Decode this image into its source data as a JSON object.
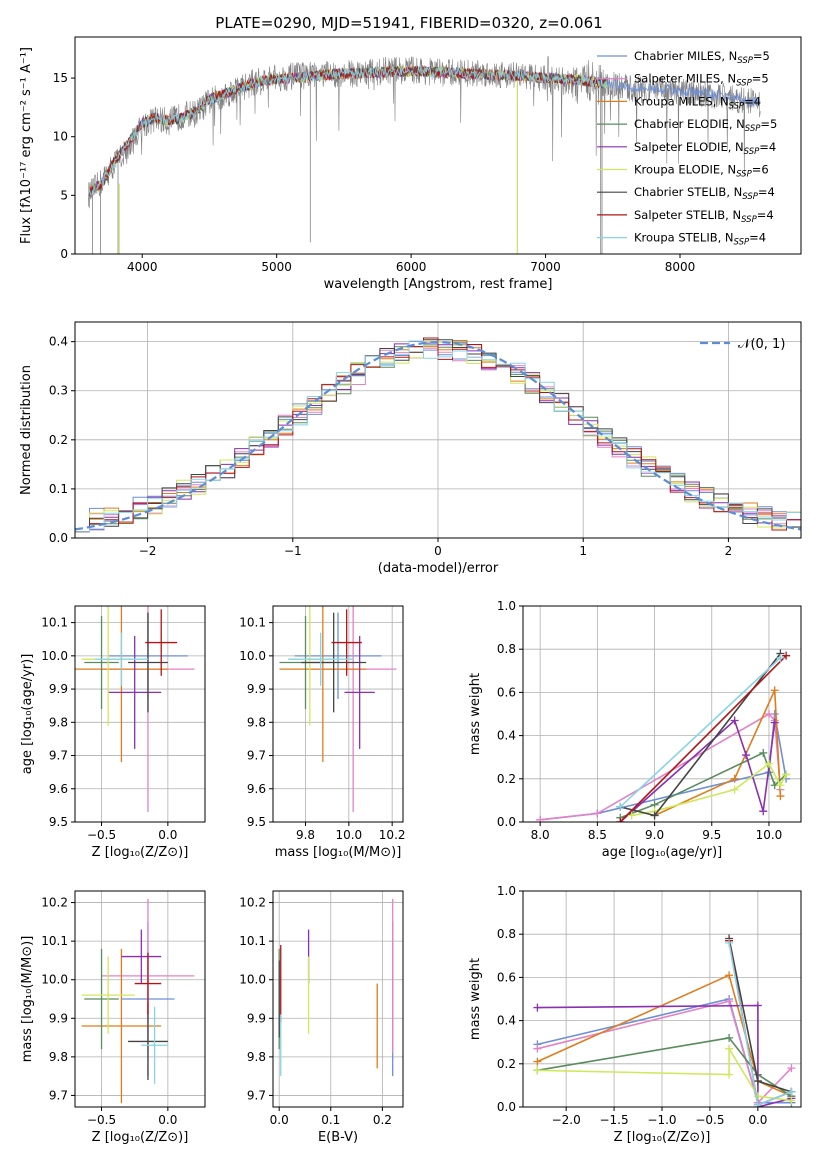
{
  "title": "PLATE=0290, MJD=51941, FIBERID=0320, z=0.061",
  "colors": {
    "data_spectrum": "#808080",
    "gaussian": "#5b8dd9"
  },
  "panels": {
    "spectrum": {
      "xlabel": "wavelength [Angstrom, rest frame]",
      "ylabel": "Flux [fλ10⁻¹⁷ erg cm⁻² s⁻¹ A⁻¹]"
    },
    "residuals": {
      "xlabel": "(data-model)/error",
      "ylabel": "Normed distribution",
      "legend": "𝒩(0, 1)"
    },
    "z_age": {
      "xlabel": "Z [log₁₀(Z/Z⊙)]",
      "ylabel": "age  [log₁₀(age/yr)]"
    },
    "mass_age": {
      "xlabel": "mass [log₁₀(M/M⊙)]"
    },
    "age_weight": {
      "xlabel": "age  [log₁₀(age/yr)]",
      "ylabel": "mass weight"
    },
    "z_mass": {
      "xlabel": "Z [log₁₀(Z/Z⊙)]",
      "ylabel": "mass [log₁₀(M/M⊙)]"
    },
    "ebv_mass": {
      "xlabel": "E(B-V)"
    },
    "z_weight": {
      "xlabel": "Z [log₁₀(Z/Z⊙)]",
      "ylabel": "mass weight"
    }
  },
  "models": [
    {
      "label": "Chabrier MILES, N",
      "sub": "SSP",
      "suffix": "=5",
      "color": "#6d8fd8"
    },
    {
      "label": "Salpeter MILES, N",
      "sub": "SSP",
      "suffix": "=5",
      "color": "#e382c8"
    },
    {
      "label": "Kroupa MILES, N",
      "sub": "SSP",
      "suffix": "=4",
      "color": "#e07c1c"
    },
    {
      "label": "Chabrier ELODIE, N",
      "sub": "SSP",
      "suffix": "=5",
      "color": "#5a8c5e"
    },
    {
      "label": "Salpeter ELODIE, N",
      "sub": "SSP",
      "suffix": "=4",
      "color": "#8b2fb0"
    },
    {
      "label": "Kroupa ELODIE, N",
      "sub": "SSP",
      "suffix": "=6",
      "color": "#cfe85c"
    },
    {
      "label": "Chabrier STELIB, N",
      "sub": "SSP",
      "suffix": "=4",
      "color": "#444444"
    },
    {
      "label": "Salpeter STELIB, N",
      "sub": "SSP",
      "suffix": "=4",
      "color": "#b31414"
    },
    {
      "label": "Kroupa STELIB, N",
      "sub": "SSP",
      "suffix": "=4",
      "color": "#87d4e6"
    }
  ],
  "chart_data": [
    {
      "id": "spectrum",
      "type": "line",
      "title": "PLATE=0290, MJD=51941, FIBERID=0320, z=0.061",
      "xlabel": "wavelength [Angstrom, rest frame]",
      "ylabel": "Flux [fλ10⁻¹⁷ erg cm⁻² s⁻¹ A⁻¹]",
      "xlim": [
        3500,
        8900
      ],
      "ylim": [
        0,
        18.5
      ],
      "xticks": [
        4000,
        5000,
        6000,
        7000,
        8000
      ],
      "yticks": [
        0,
        5,
        10,
        15
      ],
      "x": [
        3600,
        3700,
        3800,
        3900,
        4000,
        4100,
        4200,
        4300,
        4400,
        4500,
        4600,
        4700,
        4800,
        4900,
        5000,
        5200,
        5400,
        5600,
        5800,
        6000,
        6200,
        6400,
        6600,
        6800,
        7000,
        7200,
        7400,
        7600,
        7800,
        8000,
        8200,
        8400,
        8600
      ],
      "series": [
        {
          "name": "data",
          "values": [
            5.0,
            6.2,
            7.8,
            9.0,
            11.0,
            11.5,
            11.3,
            11.8,
            12.0,
            13.0,
            13.5,
            14.0,
            14.5,
            14.8,
            15.0,
            15.2,
            15.3,
            15.4,
            15.6,
            15.7,
            15.5,
            15.4,
            15.4,
            15.2,
            15.0,
            14.8,
            14.5,
            14.2,
            14.0,
            13.8,
            13.6,
            13.3,
            12.8
          ]
        },
        {
          "name": "model",
          "values": [
            5.2,
            6.0,
            8.0,
            9.5,
            11.2,
            11.6,
            11.4,
            11.6,
            12.2,
            13.2,
            13.6,
            14.1,
            14.4,
            14.8,
            14.9,
            15.1,
            15.3,
            15.4,
            15.5,
            15.6,
            15.5,
            15.4,
            15.3,
            15.2,
            15.0,
            14.9,
            14.6,
            14.3,
            14.1,
            13.9,
            13.7,
            13.3,
            12.9
          ]
        }
      ],
      "legend": "upper right"
    },
    {
      "id": "residuals",
      "type": "histogram",
      "xlabel": "(data-model)/error",
      "ylabel": "Normed distribution",
      "xlim": [
        -2.5,
        2.5
      ],
      "ylim": [
        0,
        0.44
      ],
      "xticks": [
        -2,
        -1,
        0,
        1,
        2
      ],
      "yticks": [
        0.0,
        0.1,
        0.2,
        0.3,
        0.4
      ],
      "bin_width": 0.1,
      "gaussian": {
        "mean": 0,
        "sigma": 1,
        "label": "𝒩(0, 1)"
      },
      "legend": "upper right"
    },
    {
      "id": "z_age",
      "type": "scatter",
      "xlabel": "Z [log₁₀(Z/Z⊙)]",
      "ylabel": "age  [log₁₀(age/yr)]",
      "xlim": [
        -0.7,
        0.28
      ],
      "ylim": [
        9.5,
        10.15
      ],
      "xticks": [
        -0.5,
        0.0
      ],
      "yticks": [
        9.5,
        9.6,
        9.7,
        9.8,
        9.9,
        10.0,
        10.1
      ],
      "points": [
        {
          "x": -0.15,
          "y": 10.0,
          "xerr": 0.3,
          "yerr": 0.13
        },
        {
          "x": -0.15,
          "y": 9.96,
          "xerr": 0.35,
          "yerr": 0.43
        },
        {
          "x": -0.35,
          "y": 9.96,
          "xerr": 0.35,
          "yerr": 0.28
        },
        {
          "x": -0.5,
          "y": 9.98,
          "xerr": 0.13,
          "yerr": 0.14
        },
        {
          "x": -0.25,
          "y": 9.89,
          "xerr": 0.2,
          "yerr": 0.17
        },
        {
          "x": -0.45,
          "y": 9.99,
          "xerr": 0.2,
          "yerr": 0.2
        },
        {
          "x": -0.15,
          "y": 9.98,
          "xerr": 0.15,
          "yerr": 0.15
        },
        {
          "x": -0.05,
          "y": 10.04,
          "xerr": 0.12,
          "yerr": 0.1
        },
        {
          "x": -0.35,
          "y": 9.99,
          "xerr": 0.2,
          "yerr": 0.08
        }
      ]
    },
    {
      "id": "mass_age",
      "type": "scatter",
      "xlabel": "mass [log₁₀(M/M⊙)]",
      "xlim": [
        9.65,
        10.25
      ],
      "ylim": [
        9.5,
        10.15
      ],
      "xticks": [
        9.8,
        10.0,
        10.2
      ],
      "yticks": [
        9.5,
        9.6,
        9.7,
        9.8,
        9.9,
        10.0,
        10.1
      ],
      "points": [
        {
          "x": 9.95,
          "y": 10.0,
          "xerr": 0.2,
          "yerr": 0.13
        },
        {
          "x": 10.02,
          "y": 9.96,
          "xerr": 0.2,
          "yerr": 0.43
        },
        {
          "x": 9.88,
          "y": 9.96,
          "xerr": 0.2,
          "yerr": 0.28
        },
        {
          "x": 9.8,
          "y": 9.98,
          "xerr": 0.12,
          "yerr": 0.14
        },
        {
          "x": 10.05,
          "y": 9.89,
          "xerr": 0.07,
          "yerr": 0.17
        },
        {
          "x": 9.82,
          "y": 9.99,
          "xerr": 0.1,
          "yerr": 0.2
        },
        {
          "x": 9.93,
          "y": 9.98,
          "xerr": 0.15,
          "yerr": 0.15
        },
        {
          "x": 9.99,
          "y": 10.04,
          "xerr": 0.07,
          "yerr": 0.1
        },
        {
          "x": 9.87,
          "y": 9.99,
          "xerr": 0.15,
          "yerr": 0.08
        }
      ]
    },
    {
      "id": "age_weight",
      "type": "line",
      "xlabel": "age  [log₁₀(age/yr)]",
      "ylabel": "mass weight",
      "xlim": [
        7.85,
        10.28
      ],
      "ylim": [
        0,
        1.0
      ],
      "xticks": [
        8.0,
        8.5,
        9.0,
        9.5,
        10.0
      ],
      "yticks": [
        0.0,
        0.2,
        0.4,
        0.6,
        0.8,
        1.0
      ],
      "series": [
        {
          "name": "Chabrier MILES",
          "x": [
            8.0,
            8.5,
            10.0,
            10.05,
            10.15
          ],
          "y": [
            0.01,
            0.04,
            0.23,
            0.5,
            0.2
          ]
        },
        {
          "name": "Salpeter MILES",
          "x": [
            8.0,
            8.5,
            10.0,
            10.05,
            10.1
          ],
          "y": [
            0.01,
            0.04,
            0.5,
            0.47,
            0.15
          ]
        },
        {
          "name": "Kroupa MILES",
          "x": [
            9.0,
            9.7,
            10.05,
            10.1
          ],
          "y": [
            0.03,
            0.2,
            0.61,
            0.12
          ]
        },
        {
          "name": "Chabrier ELODIE",
          "x": [
            8.7,
            9.0,
            9.95,
            10.05,
            10.15
          ],
          "y": [
            0.02,
            0.08,
            0.32,
            0.17,
            0.22
          ]
        },
        {
          "name": "Salpeter ELODIE",
          "x": [
            8.7,
            9.7,
            9.8,
            9.95,
            10.05
          ],
          "y": [
            0.0,
            0.47,
            0.31,
            0.05,
            0.46
          ]
        },
        {
          "name": "Kroupa ELODIE",
          "x": [
            8.8,
            9.0,
            9.7,
            10.0,
            10.1,
            10.15
          ],
          "y": [
            0.03,
            0.05,
            0.15,
            0.27,
            0.17,
            0.22
          ]
        },
        {
          "name": "Chabrier STELIB",
          "x": [
            8.7,
            9.0,
            10.1
          ],
          "y": [
            0.07,
            0.03,
            0.78
          ]
        },
        {
          "name": "Salpeter STELIB",
          "x": [
            8.7,
            10.15
          ],
          "y": [
            0.0,
            0.77
          ]
        },
        {
          "name": "Kroupa STELIB",
          "x": [
            8.7,
            10.1
          ],
          "y": [
            0.07,
            0.76
          ]
        }
      ]
    },
    {
      "id": "z_mass",
      "type": "scatter",
      "xlabel": "Z [log₁₀(Z/Z⊙)]",
      "ylabel": "mass [log₁₀(M/M⊙)]",
      "xlim": [
        -0.7,
        0.28
      ],
      "ylim": [
        9.67,
        10.23
      ],
      "xticks": [
        -0.5,
        0.0
      ],
      "yticks": [
        9.7,
        9.8,
        9.9,
        10.0,
        10.1,
        10.2
      ],
      "points": [
        {
          "x": -0.15,
          "y": 9.95,
          "xerr": 0.2,
          "yerr": 0.2
        },
        {
          "x": -0.15,
          "y": 10.01,
          "xerr": 0.35,
          "yerr": 0.2
        },
        {
          "x": -0.35,
          "y": 9.88,
          "xerr": 0.3,
          "yerr": 0.2
        },
        {
          "x": -0.5,
          "y": 9.95,
          "xerr": 0.13,
          "yerr": 0.13
        },
        {
          "x": -0.2,
          "y": 10.06,
          "xerr": 0.15,
          "yerr": 0.07
        },
        {
          "x": -0.45,
          "y": 9.96,
          "xerr": 0.2,
          "yerr": 0.1
        },
        {
          "x": -0.15,
          "y": 9.84,
          "xerr": 0.15,
          "yerr": 0.1
        },
        {
          "x": -0.15,
          "y": 9.99,
          "xerr": 0.1,
          "yerr": 0.08
        },
        {
          "x": -0.1,
          "y": 9.83,
          "xerr": 0.1,
          "yerr": 0.1
        }
      ]
    },
    {
      "id": "ebv_mass",
      "type": "scatter",
      "xlabel": "E(B-V)",
      "xlim": [
        -0.012,
        0.24
      ],
      "ylim": [
        9.67,
        10.23
      ],
      "xticks": [
        0.0,
        0.1,
        0.2
      ],
      "yticks": [
        9.7,
        9.8,
        9.9,
        10.0,
        10.1,
        10.2
      ],
      "points": [
        {
          "x": 0.22,
          "y": 9.95,
          "yerr": 0.2
        },
        {
          "x": 0.22,
          "y": 10.01,
          "yerr": 0.2
        },
        {
          "x": 0.19,
          "y": 9.88,
          "yerr": 0.11
        },
        {
          "x": 0.0,
          "y": 9.95,
          "yerr": 0.13
        },
        {
          "x": 0.057,
          "y": 10.06,
          "yerr": 0.07
        },
        {
          "x": 0.057,
          "y": 9.96,
          "yerr": 0.1
        },
        {
          "x": 0.0,
          "y": 9.95,
          "yerr": 0.1
        },
        {
          "x": 0.003,
          "y": 9.99,
          "yerr": 0.1
        },
        {
          "x": 0.003,
          "y": 9.83,
          "yerr": 0.08
        }
      ]
    },
    {
      "id": "z_weight",
      "type": "line",
      "xlabel": "Z [log₁₀(Z/Z⊙)]",
      "ylabel": "mass weight",
      "xlim": [
        -2.45,
        0.45
      ],
      "ylim": [
        0,
        1.0
      ],
      "xticks": [
        -2.0,
        -1.5,
        -1.0,
        -0.5,
        0.0
      ],
      "yticks": [
        0.0,
        0.2,
        0.4,
        0.6,
        0.8,
        1.0
      ],
      "series": [
        {
          "name": "Chabrier MILES",
          "x": [
            -2.3,
            -0.3,
            0.0,
            0.35
          ],
          "y": [
            0.29,
            0.5,
            0.02,
            0.02
          ]
        },
        {
          "name": "Salpeter MILES",
          "x": [
            -2.3,
            -0.3,
            0.0,
            0.35
          ],
          "y": [
            0.27,
            0.49,
            0.02,
            0.18
          ]
        },
        {
          "name": "Kroupa MILES",
          "x": [
            -2.3,
            -0.3,
            0.0,
            0.35
          ],
          "y": [
            0.21,
            0.61,
            0.12,
            0.05
          ]
        },
        {
          "name": "Chabrier ELODIE",
          "x": [
            -2.3,
            -0.3,
            0.0,
            0.35
          ],
          "y": [
            0.17,
            0.32,
            0.15,
            0.05
          ]
        },
        {
          "name": "Salpeter ELODIE",
          "x": [
            -2.3,
            0.0,
            0.0,
            0.35
          ],
          "y": [
            0.46,
            0.47,
            0.0,
            0.04
          ]
        },
        {
          "name": "Kroupa ELODIE",
          "x": [
            -2.3,
            -0.3,
            -0.3,
            0.0,
            0.35
          ],
          "y": [
            0.17,
            0.15,
            0.27,
            0.05,
            0.03
          ]
        },
        {
          "name": "Chabrier STELIB",
          "x": [
            -0.3,
            0.0,
            0.35
          ],
          "y": [
            0.78,
            0.12,
            0.07
          ]
        },
        {
          "name": "Salpeter STELIB",
          "x": [
            -0.3,
            0.0,
            0.35
          ],
          "y": [
            0.77,
            0.01,
            0.07
          ]
        },
        {
          "name": "Kroupa STELIB",
          "x": [
            -0.3,
            0.0,
            0.35
          ],
          "y": [
            0.76,
            0.01,
            0.07
          ]
        }
      ]
    }
  ]
}
